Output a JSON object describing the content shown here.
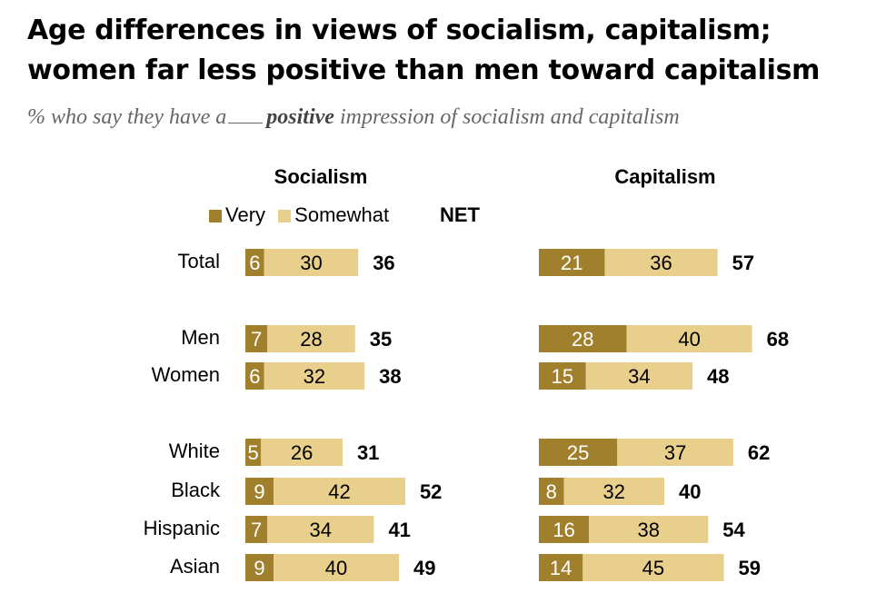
{
  "title_line1": "Age differences in views of socialism, capitalism;",
  "title_line2": "women far less positive than men toward capitalism",
  "subtitle": {
    "prefix": "% who say they have a",
    "emphasis": "positive",
    "suffix": "impression of socialism and capitalism"
  },
  "legend": {
    "very": "Very",
    "somewhat": "Somewhat",
    "net": "NET"
  },
  "colors": {
    "very": "#a0802c",
    "somewhat": "#e8cf8b",
    "bar_text": "#ffffff",
    "somewhat_text": "#000000"
  },
  "chart_data": {
    "type": "bar",
    "orientation": "horizontal",
    "stacked": true,
    "categories": [
      "Total",
      "Men",
      "Women",
      "White",
      "Black",
      "Hispanic",
      "Asian"
    ],
    "groups": [
      [
        "Total"
      ],
      [
        "Men",
        "Women"
      ],
      [
        "White",
        "Black",
        "Hispanic",
        "Asian"
      ]
    ],
    "panels": [
      {
        "title": "Socialism",
        "series": [
          {
            "name": "Very",
            "values": [
              6,
              7,
              6,
              5,
              9,
              7,
              9
            ]
          },
          {
            "name": "Somewhat",
            "values": [
              30,
              28,
              32,
              26,
              42,
              34,
              40
            ]
          }
        ],
        "net": [
          36,
          35,
          38,
          31,
          52,
          41,
          49
        ]
      },
      {
        "title": "Capitalism",
        "series": [
          {
            "name": "Very",
            "values": [
              21,
              28,
              15,
              25,
              8,
              16,
              14
            ]
          },
          {
            "name": "Somewhat",
            "values": [
              36,
              40,
              34,
              37,
              32,
              38,
              45
            ]
          }
        ],
        "net": [
          57,
          68,
          48,
          62,
          40,
          54,
          59
        ]
      }
    ]
  }
}
